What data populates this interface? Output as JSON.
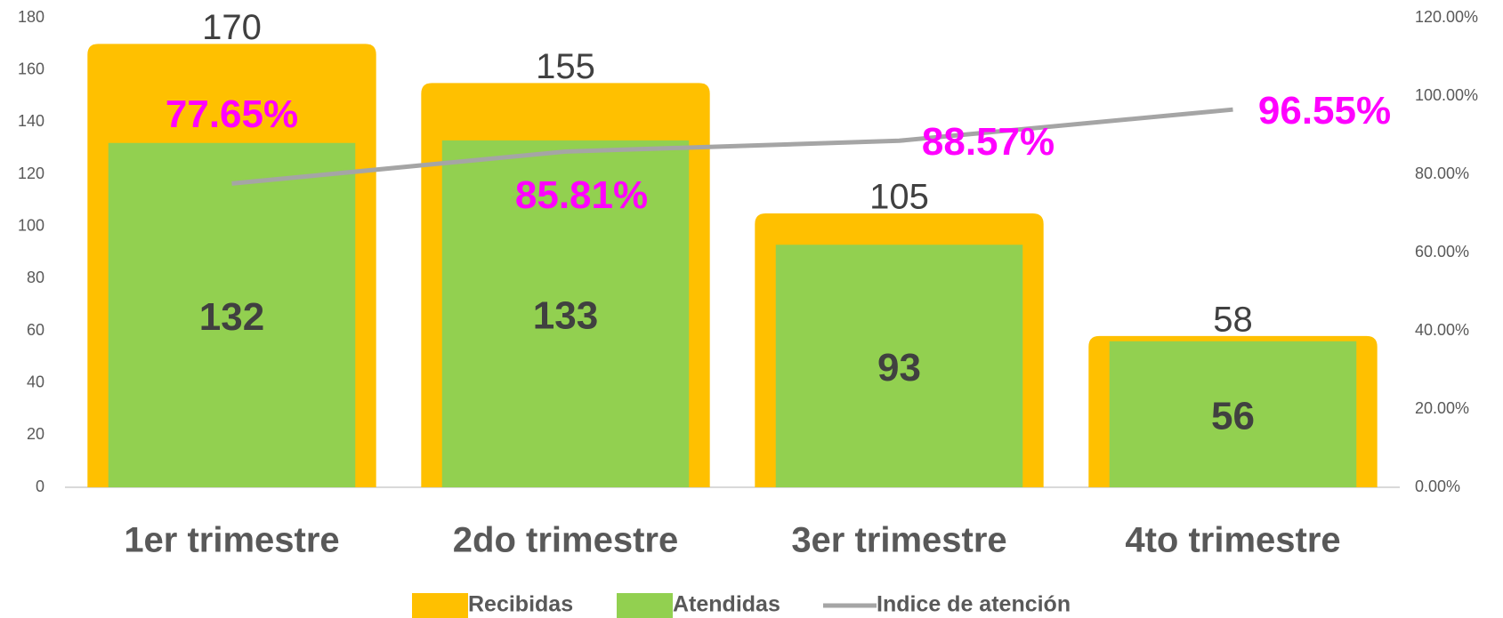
{
  "chart_data": {
    "type": "bar-line-combo",
    "categories": [
      "1er trimestre",
      "2do trimestre",
      "3er trimestre",
      "4to trimestre"
    ],
    "series": [
      {
        "name": "Recibidas",
        "color": "#ffc000",
        "type": "bar",
        "values": [
          170,
          155,
          105,
          58
        ]
      },
      {
        "name": "Atendidas",
        "color": "#92d050",
        "type": "bar",
        "values": [
          132,
          133,
          93,
          56
        ]
      },
      {
        "name": "Indice de atención",
        "color": "#a5a5a5",
        "type": "line",
        "axis": "y2",
        "values": [
          77.65,
          85.81,
          88.57,
          96.55
        ],
        "value_labels": [
          "77.65%",
          "85.81%",
          "88.57%",
          "96.55%"
        ],
        "label_color": "#ff00ff"
      }
    ],
    "ylim": [
      0,
      180
    ],
    "yticks": [
      0,
      20,
      40,
      60,
      80,
      100,
      120,
      140,
      160,
      180
    ],
    "y2lim": [
      0,
      120
    ],
    "y2ticks": [
      {
        "value": 0,
        "label": "0.00%"
      },
      {
        "value": 20,
        "label": "20.00%"
      },
      {
        "value": 40,
        "label": "40.00%"
      },
      {
        "value": 60,
        "label": "60.00%"
      },
      {
        "value": 80,
        "label": "80.00%"
      },
      {
        "value": 100,
        "label": "100.00%"
      },
      {
        "value": 120,
        "label": "120.00%"
      }
    ],
    "legend": "bottom"
  }
}
